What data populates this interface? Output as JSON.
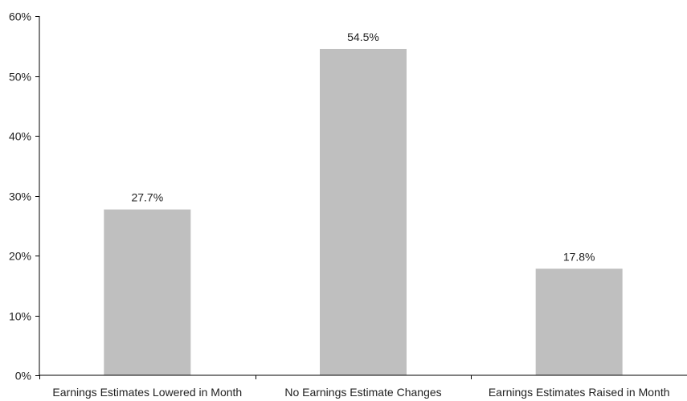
{
  "chart_data": {
    "type": "bar",
    "title": "",
    "xlabel": "",
    "ylabel": "",
    "categories": [
      "Earnings Estimates Lowered in Month",
      "No Earnings Estimate Changes",
      "Earnings Estimates Raised in Month"
    ],
    "values": [
      27.7,
      54.5,
      17.8
    ],
    "data_labels": [
      "27.7%",
      "54.5%",
      "17.8%"
    ],
    "ylim": [
      0,
      60
    ],
    "yticks": [
      0,
      10,
      20,
      30,
      40,
      50,
      60
    ],
    "ytick_labels": [
      "0%",
      "10%",
      "20%",
      "30%",
      "40%",
      "50%",
      "60%"
    ],
    "grid": false,
    "legend": "none",
    "bar_color": "#bfbfbf",
    "axis_color": "#000000",
    "text_color": "#222222"
  }
}
